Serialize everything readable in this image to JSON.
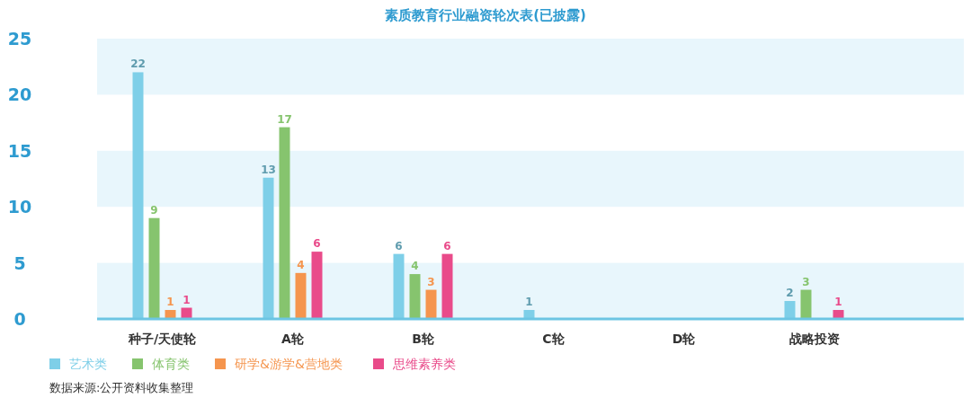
{
  "chart_data": {
    "type": "bar",
    "title": "素质教育行业融资轮次表(已披露)",
    "categories": [
      "种子/天使轮",
      "A轮",
      "B轮",
      "C轮",
      "D轮",
      "战略投资"
    ],
    "series": [
      {
        "name": "艺术类",
        "color": "#7ecfe8",
        "values": [
          22,
          12.6,
          5.8,
          0.8,
          null,
          1.6
        ],
        "value_labels": [
          "22",
          "13",
          "6",
          "1",
          null,
          "2"
        ]
      },
      {
        "name": "体育类",
        "color": "#86c46e",
        "values": [
          9,
          17.1,
          4,
          null,
          null,
          2.6
        ],
        "value_labels": [
          "9",
          "17",
          "4",
          null,
          null,
          "3"
        ]
      },
      {
        "name": "研学&游学&营地类",
        "color": "#f5954e",
        "values": [
          0.8,
          4.1,
          2.6,
          null,
          null,
          null
        ],
        "value_labels": [
          "1",
          "4",
          "3",
          null,
          null,
          null
        ]
      },
      {
        "name": "思维素养类",
        "color": "#e94b8a",
        "values": [
          1,
          6,
          5.8,
          null,
          null,
          0.8
        ],
        "value_labels": [
          "1",
          "6",
          "6",
          null,
          null,
          "1"
        ]
      }
    ],
    "ylim": [
      0,
      25
    ],
    "yticks": [
      0,
      5,
      10,
      15,
      20,
      25
    ],
    "legend": "bottom left",
    "bands": [
      {
        "axis": "y",
        "from": 0,
        "to": 5,
        "color": "#e8f6fc"
      },
      {
        "axis": "y",
        "from": 10,
        "to": 15,
        "color": "#e8f6fc"
      },
      {
        "axis": "y",
        "from": 20,
        "to": 25,
        "color": "#e8f6fc"
      }
    ],
    "annotations": [
      "数据来源:公开资料收集整理"
    ]
  }
}
